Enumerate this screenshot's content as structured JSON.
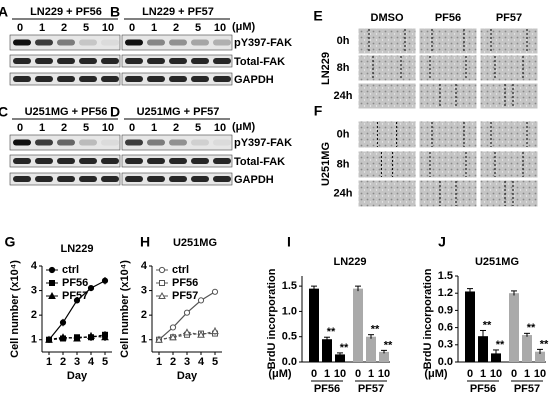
{
  "blots": [
    {
      "label": "A",
      "title": "LN229 + PF56"
    },
    {
      "label": "B",
      "title": "LN229 + PF57"
    },
    {
      "label": "C",
      "title": "U251MG + PF56"
    },
    {
      "label": "D",
      "title": "U251MG + PF57"
    }
  ],
  "concentrations": [
    0,
    1,
    2,
    5,
    10
  ],
  "unit": "(μM)",
  "blot_rows": [
    "pY397-FAK",
    "Total-FAK",
    "GAPDH"
  ],
  "wound_columns": [
    "DMSO",
    "PF56",
    "PF57"
  ],
  "wound_rows": [
    "0h",
    "8h",
    "24h"
  ],
  "wound": [
    {
      "label": "E",
      "cell_line": "LN229"
    },
    {
      "label": "F",
      "cell_line": "U251MG"
    }
  ],
  "chart_data": [
    {
      "type": "line",
      "panel": "G",
      "title": "LN229",
      "y_label": "Cell number (x10⁴)",
      "x_label": "Day",
      "x": [
        1,
        2,
        3,
        4,
        5
      ],
      "xlim": [
        0.5,
        5.5
      ],
      "xticks": [
        1,
        2,
        3,
        4,
        5
      ],
      "ylim": [
        0.5,
        4
      ],
      "yticks": [
        1,
        2,
        3,
        4
      ],
      "series": [
        {
          "name": "ctrl",
          "marker": "circle",
          "filled": true,
          "color": "#000",
          "values": [
            1,
            1.7,
            2.6,
            3.1,
            3.4
          ],
          "errors": [
            0.05,
            0.15,
            0.1,
            0.1,
            0.15
          ]
        },
        {
          "name": "PF56",
          "marker": "square",
          "filled": true,
          "color": "#000",
          "values": [
            1,
            1.05,
            1.1,
            1.1,
            1.2
          ],
          "errors": [
            0.05,
            0.1,
            0.1,
            0.15,
            0.15
          ]
        },
        {
          "name": "PF57",
          "marker": "triangle",
          "filled": true,
          "color": "#000",
          "values": [
            1,
            1.1,
            1.05,
            1.15,
            1.1
          ],
          "errors": [
            0.05,
            0.1,
            0.1,
            0.15,
            0.15
          ]
        }
      ]
    },
    {
      "type": "line",
      "panel": "H",
      "title": "U251MG",
      "y_label": "Cell number (x10⁴)",
      "x_label": "Day",
      "x": [
        1,
        2,
        3,
        4,
        5
      ],
      "xlim": [
        0.5,
        5.5
      ],
      "xticks": [
        1,
        2,
        3,
        4,
        5
      ],
      "ylim": [
        0.5,
        4
      ],
      "yticks": [
        1,
        2,
        3,
        4
      ],
      "series": [
        {
          "name": "ctrl",
          "marker": "circle",
          "filled": false,
          "color": "#555",
          "values": [
            1,
            1.5,
            2.1,
            2.6,
            2.95
          ],
          "errors": [
            0.05,
            0.1,
            0.1,
            0.1,
            0.1
          ]
        },
        {
          "name": "PF56",
          "marker": "square",
          "filled": false,
          "color": "#555",
          "values": [
            1,
            1.1,
            1.2,
            1.25,
            1.25
          ],
          "errors": [
            0.05,
            0.1,
            0.1,
            0.1,
            0.1
          ]
        },
        {
          "name": "PF57",
          "marker": "triangle",
          "filled": false,
          "color": "#555",
          "values": [
            1,
            1.1,
            1.3,
            1.2,
            1.35
          ],
          "errors": [
            0.05,
            0.1,
            0.1,
            0.1,
            0.15
          ]
        }
      ]
    },
    {
      "type": "bar",
      "panel": "I",
      "title": "LN229",
      "y_label": "BrdU incorporation",
      "ylim": [
        0,
        1.7
      ],
      "yticks": [
        {
          "value": 0,
          "label": "0.0"
        },
        0.5,
        {
          "value": 1,
          "label": "1.0"
        },
        1.5
      ],
      "series": [
        {
          "name": "PF56",
          "color": "#000",
          "categories": [
            "0",
            "1",
            "10"
          ],
          "values": [
            1.45,
            0.45,
            0.15
          ],
          "errors": [
            0.05,
            0.04,
            0.03
          ],
          "significance": [
            null,
            "**",
            "**"
          ]
        },
        {
          "name": "PF57",
          "color": "#aaa",
          "categories": [
            "0",
            "1",
            "10"
          ],
          "values": [
            1.45,
            0.5,
            0.2
          ],
          "errors": [
            0.05,
            0.04,
            0.03
          ],
          "significance": [
            null,
            "**",
            "**"
          ]
        }
      ]
    },
    {
      "type": "bar",
      "panel": "J",
      "title": "U251MG",
      "y_label": "BrdU incorporation",
      "ylim": [
        0,
        1.5
      ],
      "yticks": [
        {
          "value": 0,
          "label": "0.0"
        },
        0.3,
        0.6,
        0.9,
        1.2,
        1.5
      ],
      "series": [
        {
          "name": "PF56",
          "color": "#000",
          "categories": [
            "0",
            "1",
            "10"
          ],
          "values": [
            1.23,
            0.45,
            0.15
          ],
          "errors": [
            0.05,
            0.1,
            0.06
          ],
          "significance": [
            null,
            "**",
            "**"
          ]
        },
        {
          "name": "PF57",
          "color": "#aaa",
          "categories": [
            "0",
            "1",
            "10"
          ],
          "values": [
            1.2,
            0.47,
            0.18
          ],
          "errors": [
            0.04,
            0.03,
            0.04
          ],
          "significance": [
            null,
            "**",
            "**"
          ]
        }
      ]
    }
  ]
}
